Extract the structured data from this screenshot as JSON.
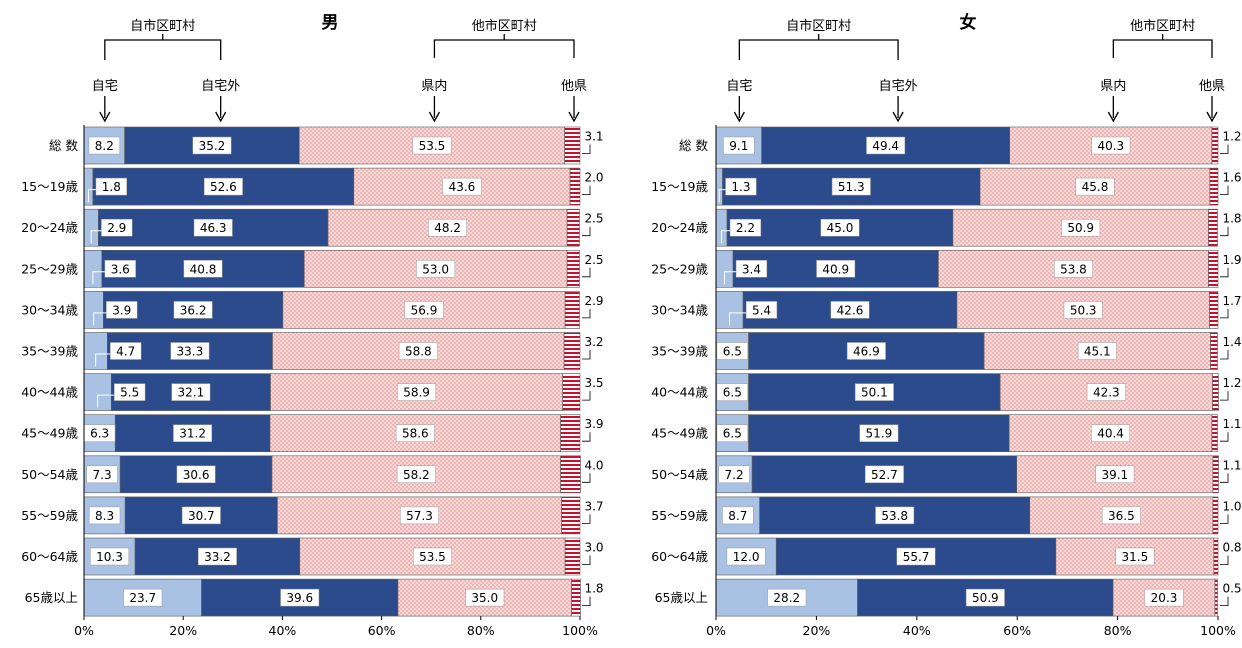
{
  "chart_data": [
    {
      "type": "bar",
      "stacked": true,
      "orientation": "horizontal",
      "title": "男",
      "group_labels": {
        "own_municipality": "自市区町村",
        "other_municipality": "他市区町村"
      },
      "categories": [
        "総 数",
        "15～19歳",
        "20～24歳",
        "25～29歳",
        "30～34歳",
        "35～39歳",
        "40～44歳",
        "45～49歳",
        "50～54歳",
        "55～59歳",
        "60～64歳",
        "65歳以上"
      ],
      "series": [
        {
          "name": "自宅",
          "values": [
            8.2,
            1.8,
            2.9,
            3.6,
            3.9,
            4.7,
            5.5,
            6.3,
            7.3,
            8.3,
            10.3,
            23.7
          ]
        },
        {
          "name": "自宅外",
          "values": [
            35.2,
            52.6,
            46.3,
            40.8,
            36.2,
            33.3,
            32.1,
            31.2,
            30.6,
            30.7,
            33.2,
            39.6
          ]
        },
        {
          "name": "県内",
          "values": [
            53.5,
            43.6,
            48.2,
            53.0,
            56.9,
            58.8,
            58.9,
            58.6,
            58.2,
            57.3,
            53.5,
            35.0
          ]
        },
        {
          "name": "他県",
          "values": [
            3.1,
            2.0,
            2.5,
            2.5,
            2.9,
            3.2,
            3.5,
            3.9,
            4.0,
            3.7,
            3.0,
            1.8
          ]
        }
      ],
      "x_ticks": [
        "0%",
        "20%",
        "40%",
        "60%",
        "80%",
        "100%"
      ],
      "xlim": [
        0,
        100
      ],
      "grid": false,
      "legend": "top"
    },
    {
      "type": "bar",
      "stacked": true,
      "orientation": "horizontal",
      "title": "女",
      "group_labels": {
        "own_municipality": "自市区町村",
        "other_municipality": "他市区町村"
      },
      "categories": [
        "総 数",
        "15～19歳",
        "20～24歳",
        "25～29歳",
        "30～34歳",
        "35～39歳",
        "40～44歳",
        "45～49歳",
        "50～54歳",
        "55～59歳",
        "60～64歳",
        "65歳以上"
      ],
      "series": [
        {
          "name": "自宅",
          "values": [
            9.1,
            1.3,
            2.2,
            3.4,
            5.4,
            6.5,
            6.5,
            6.5,
            7.2,
            8.7,
            12.0,
            28.2
          ]
        },
        {
          "name": "自宅外",
          "values": [
            49.4,
            51.3,
            45.0,
            40.9,
            42.6,
            46.9,
            50.1,
            51.9,
            52.7,
            53.8,
            55.7,
            50.9
          ]
        },
        {
          "name": "県内",
          "values": [
            40.3,
            45.8,
            50.9,
            53.8,
            50.3,
            45.1,
            42.3,
            40.4,
            39.1,
            36.5,
            31.5,
            20.3
          ]
        },
        {
          "name": "他県",
          "values": [
            1.2,
            1.6,
            1.8,
            1.9,
            1.7,
            1.4,
            1.2,
            1.1,
            1.1,
            1.0,
            0.8,
            0.5
          ]
        }
      ],
      "x_ticks": [
        "0%",
        "20%",
        "40%",
        "60%",
        "80%",
        "100%"
      ],
      "xlim": [
        0,
        100
      ],
      "grid": false,
      "legend": "top"
    }
  ],
  "colors": {
    "home": "#a9c1e3",
    "outside_home": "#2b4b8c",
    "in_prefecture": "#f7d6d6",
    "in_prefecture_dot": "#de8c8c",
    "other_prefecture_stripe": "#c8102e",
    "axis": "#000000"
  }
}
